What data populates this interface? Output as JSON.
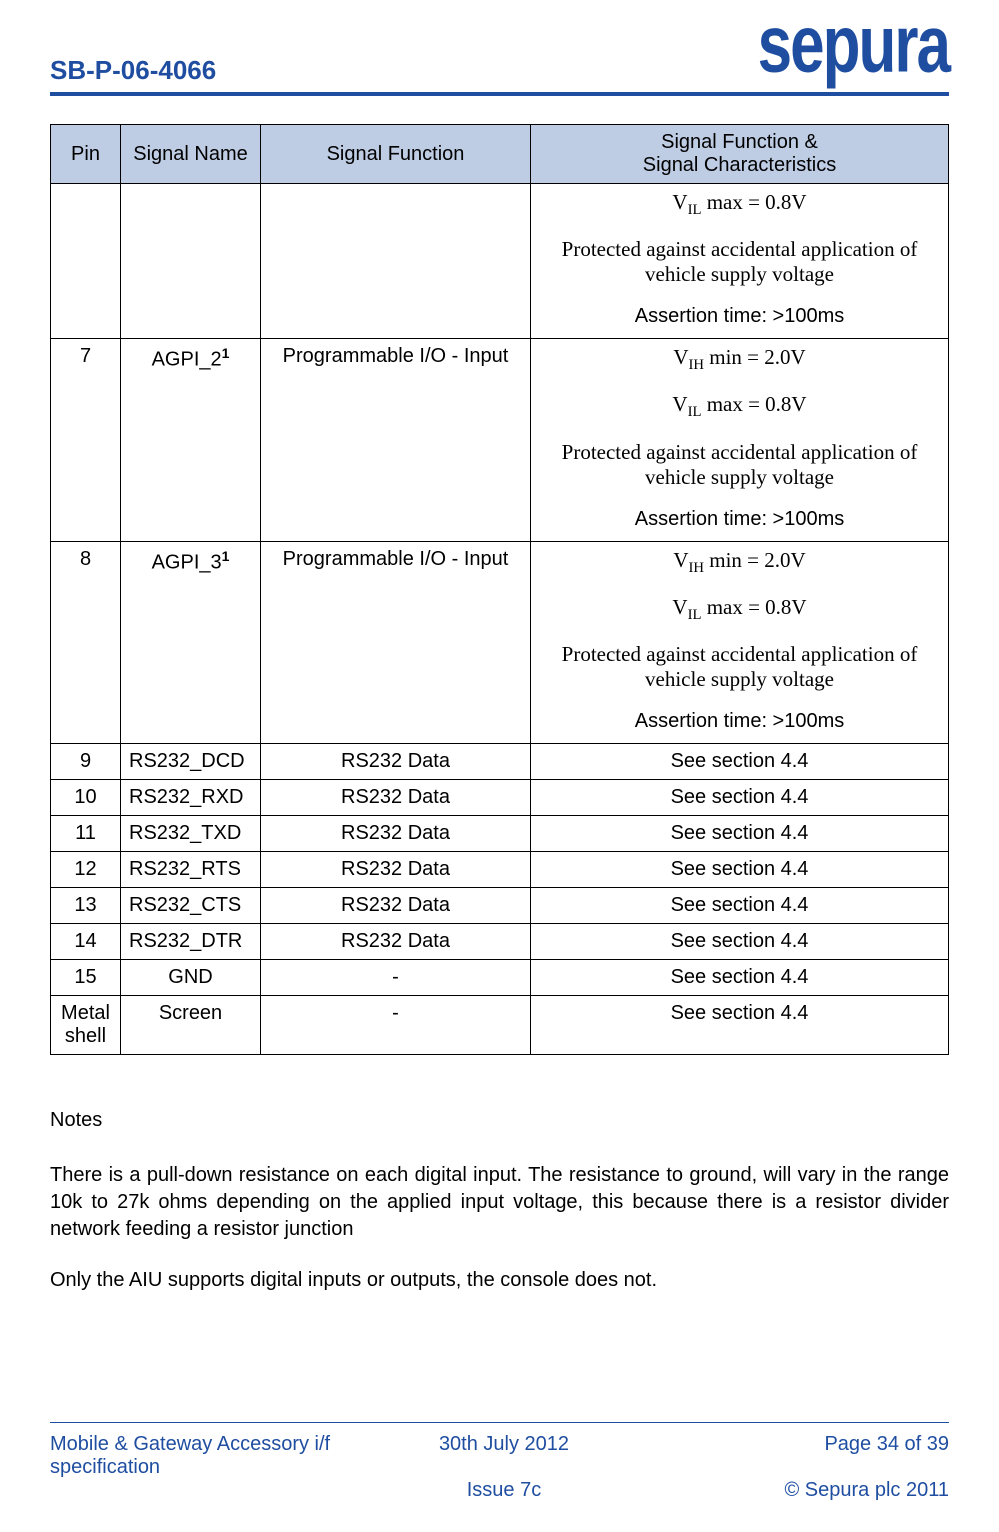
{
  "header": {
    "doc_code": "SB-P-06-4066",
    "brand": "sepura"
  },
  "table": {
    "headers": {
      "pin": "Pin",
      "name": "Signal Name",
      "func": "Signal Function",
      "char_l1": "Signal Function &",
      "char_l2": "Signal Characteristics"
    },
    "rows": {
      "r0": {
        "vil": "V",
        "vil_sub": "IL",
        "vil_rest": " max = 0.8V",
        "prot": "Protected against accidental application of vehicle supply voltage",
        "assert": "Assertion time: >100ms"
      },
      "r7": {
        "pin": "7",
        "name": "AGPI_2",
        "name_sup": "1",
        "func": "Programmable I/O - Input",
        "vih": "V",
        "vih_sub": "IH",
        "vih_rest": " min = 2.0V",
        "vil": "V",
        "vil_sub": "IL",
        "vil_rest": " max = 0.8V",
        "prot": "Protected against accidental application of vehicle supply voltage",
        "assert": "Assertion time: >100ms"
      },
      "r8": {
        "pin": "8",
        "name": "AGPI_3",
        "name_sup": "1",
        "func": "Programmable I/O  - Input",
        "vih": "V",
        "vih_sub": "IH",
        "vih_rest": " min = 2.0V",
        "vil": "V",
        "vil_sub": "IL",
        "vil_rest": " max = 0.8V",
        "prot": "Protected against accidental application of vehicle supply voltage",
        "assert": "Assertion time: >100ms"
      },
      "r9": {
        "pin": "9",
        "name": "RS232_DCD",
        "func": "RS232 Data",
        "char": "See section 4.4"
      },
      "r10": {
        "pin": "10",
        "name": "RS232_RXD",
        "func": "RS232 Data",
        "char": "See section 4.4"
      },
      "r11": {
        "pin": "11",
        "name": "RS232_TXD",
        "func": "RS232 Data",
        "char": "See section 4.4"
      },
      "r12": {
        "pin": "12",
        "name": "RS232_RTS",
        "func": "RS232 Data",
        "char": "See section 4.4"
      },
      "r13": {
        "pin": "13",
        "name": "RS232_CTS",
        "func": "RS232 Data",
        "char": "See section 4.4"
      },
      "r14": {
        "pin": "14",
        "name": "RS232_DTR",
        "func": "RS232 Data",
        "char": "See section 4.4"
      },
      "r15": {
        "pin": "15",
        "name": "GND",
        "func": "-",
        "char": "See section 4.4"
      },
      "rshell": {
        "pin": "Metal shell",
        "name": "Screen",
        "func": "-",
        "char": "See section 4.4"
      }
    }
  },
  "notes": {
    "title": "Notes",
    "p1": "There is a pull-down resistance on each digital input. The resistance to ground, will vary in the range 10k to 27k ohms depending on the applied input voltage, this because there is a resistor divider network feeding a resistor junction",
    "p2": "Only the AIU supports digital inputs or outputs, the console does not."
  },
  "footer": {
    "left": "Mobile & Gateway Accessory i/f specification",
    "mid1": "30th July 2012",
    "mid2": "Issue 7c",
    "right1": "Page 34 of 39",
    "right2": "© Sepura plc 2011"
  },
  "colors": {
    "accent": "#1f4ea1",
    "th_bg": "#bfcde4",
    "border": "#000000"
  }
}
